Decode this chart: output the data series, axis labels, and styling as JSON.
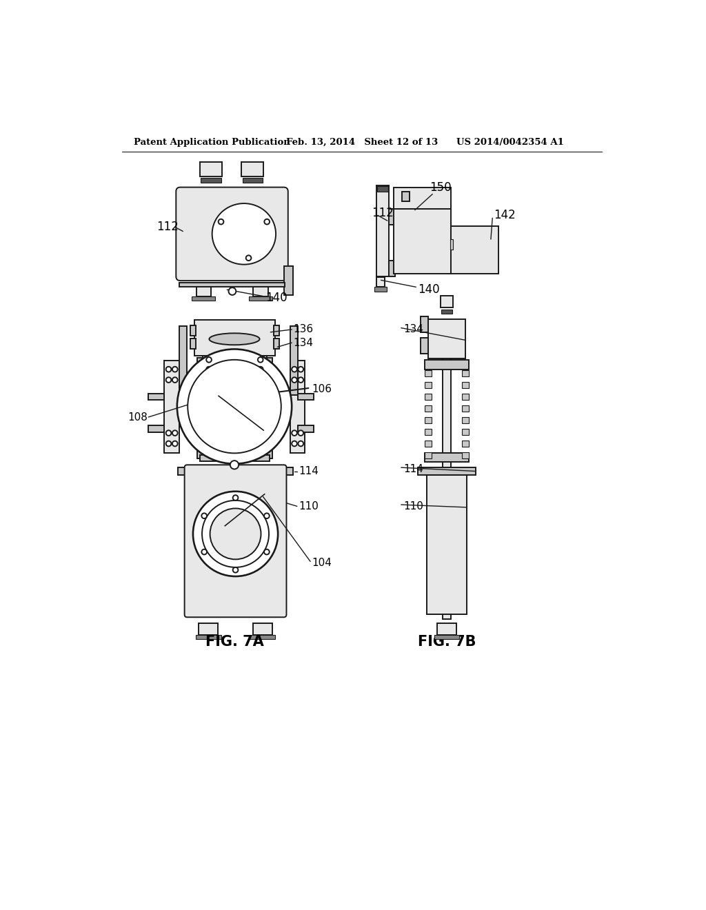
{
  "background_color": "#ffffff",
  "header_left": "Patent Application Publication",
  "header_mid": "Feb. 13, 2014  Sheet 12 of 13",
  "header_right": "US 2014/0042354 A1",
  "line_color": "#1a1a1a",
  "light_gray": "#e8e8e8",
  "mid_gray": "#c8c8c8",
  "dark_gray": "#888888",
  "lw": 1.4,
  "fig7a_label": "FIG. 7A",
  "fig7b_label": "FIG. 7B"
}
